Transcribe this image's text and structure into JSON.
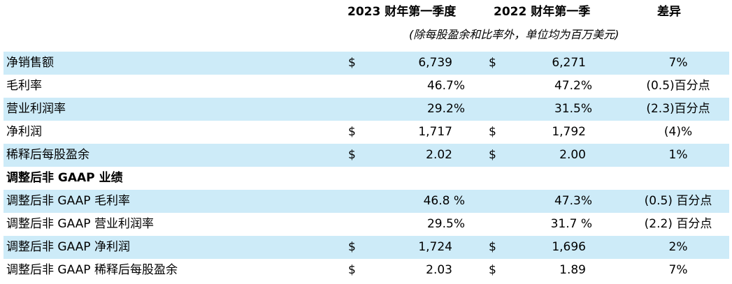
{
  "header": {
    "col_2023": "2023 财年第一季度",
    "col_2022": "2022 财年第一季",
    "col_change": "差异",
    "units_note": "(除每股盈余和比率外，单位均为百万美元)"
  },
  "rows": [
    {
      "label": "净销售额",
      "cur1": "$",
      "v2023": "6,739",
      "cur2": "$",
      "v2022": "6,271",
      "change": "7%"
    },
    {
      "label": "毛利率",
      "p2023": "46.7%",
      "p2022": "47.2%",
      "change": "(0.5)百分点"
    },
    {
      "label": "营业利润率",
      "p2023": "29.2%",
      "p2022": "31.5%",
      "change": "(2.3)百分点"
    },
    {
      "label": "净利润",
      "cur1": "$",
      "v2023": "1,717",
      "cur2": "$",
      "v2022": "1,792",
      "change": "(4)%"
    },
    {
      "label": "稀释后每股盈余",
      "cur1": "$",
      "v2023": "2.02",
      "cur2": "$",
      "v2022": "2.00",
      "change": "1%"
    },
    {
      "label": "调整后非 GAAP 业绩"
    },
    {
      "label": "调整后非 GAAP 毛利率",
      "p2023": "46.8 %",
      "p2022": "47.3%",
      "change": "(0.5) 百分点"
    },
    {
      "label": "调整后非 GAAP 营业利润率",
      "p2023": "29.5%",
      "p2022": "31.7 %",
      "change": "(2.2) 百分点"
    },
    {
      "label": "调整后非 GAAP 净利润",
      "cur1": "$",
      "v2023": "1,724",
      "cur2": "$",
      "v2022": "1,696",
      "change": "2%"
    },
    {
      "label": "调整后非 GAAP 稀释后每股盈余",
      "cur1": "$",
      "v2023": "2.03",
      "cur2": "$",
      "v2022": "1.89",
      "change": "7%"
    }
  ]
}
